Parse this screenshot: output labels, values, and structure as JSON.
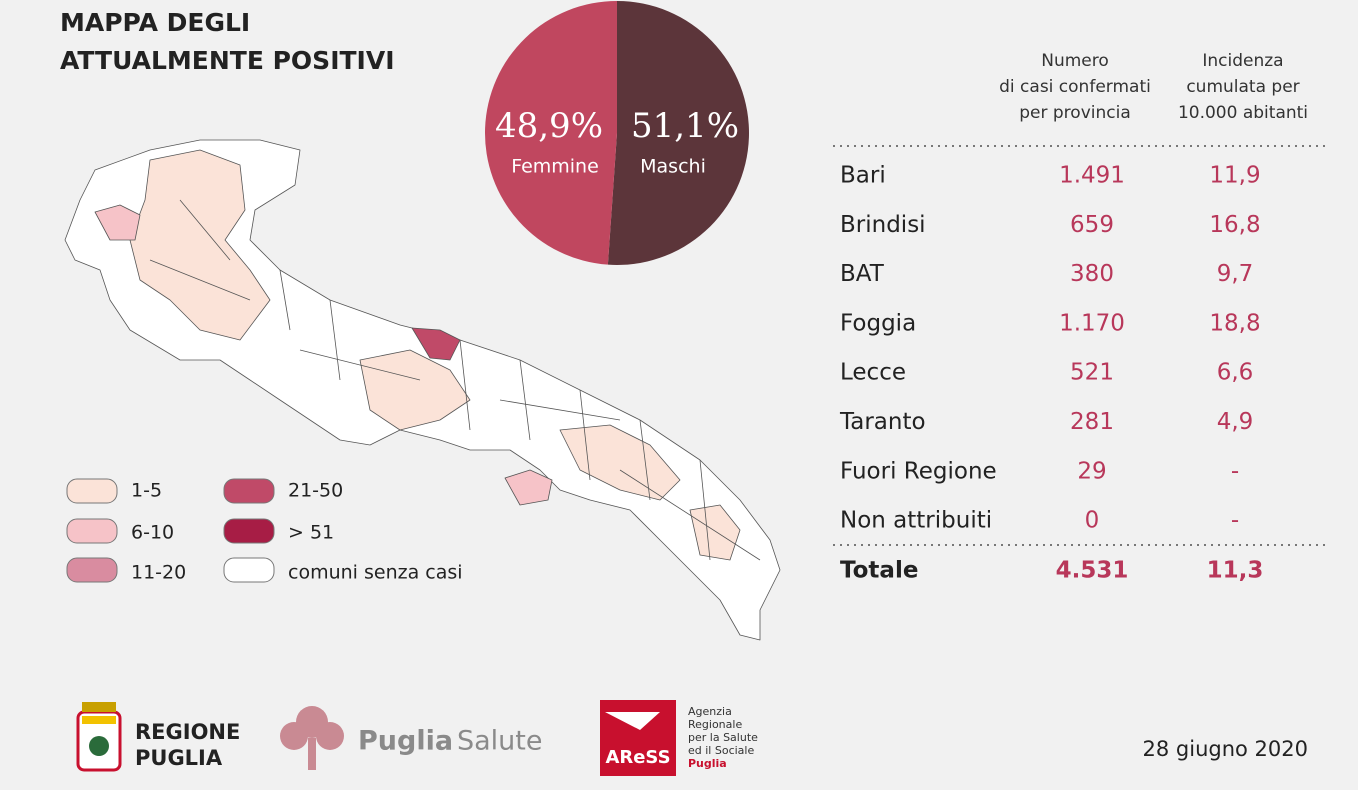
{
  "header": {
    "title_lines": [
      "MAPPA DEGLI",
      "ATTUALMENTE POSITIVI"
    ]
  },
  "chart_data": {
    "type": "pie",
    "categories": [
      "Femmine",
      "Maschi"
    ],
    "values": [
      48.9,
      51.1
    ],
    "value_labels": [
      "48,9%",
      "51,1%"
    ],
    "colors": [
      "#c0475f",
      "#5c353a"
    ]
  },
  "legend": {
    "items": [
      "1-5",
      "6-10",
      "11-20",
      "21-50",
      "> 51",
      "comuni senza casi"
    ]
  },
  "table": {
    "columns": [
      [
        "Numero",
        "di casi confermati",
        "per provincia"
      ],
      [
        "Incidenza",
        "cumulata per",
        "10.000 abitanti"
      ]
    ],
    "rows": [
      [
        "Bari",
        "1.491",
        "11,9"
      ],
      [
        "Brindisi",
        "659",
        "16,8"
      ],
      [
        "BAT",
        "380",
        "9,7"
      ],
      [
        "Foggia",
        "1.170",
        "18,8"
      ],
      [
        "Lecce",
        "521",
        "6,6"
      ],
      [
        "Taranto",
        "281",
        "4,9"
      ],
      [
        "Fuori Regione",
        "29",
        "-"
      ],
      [
        "Non attribuiti",
        "0",
        "-"
      ]
    ],
    "total": [
      "Totale",
      "4.531",
      "11,3"
    ]
  },
  "footer": {
    "regione": [
      "REGIONE",
      "PUGLIA"
    ],
    "puglia_salute": [
      "Puglia",
      "Salute"
    ],
    "aress": "AReSS",
    "aress_text": [
      "Agenzia",
      "Regionale",
      "per la Salute",
      "ed il Sociale",
      "Puglia"
    ],
    "date": "28 giugno 2020"
  }
}
